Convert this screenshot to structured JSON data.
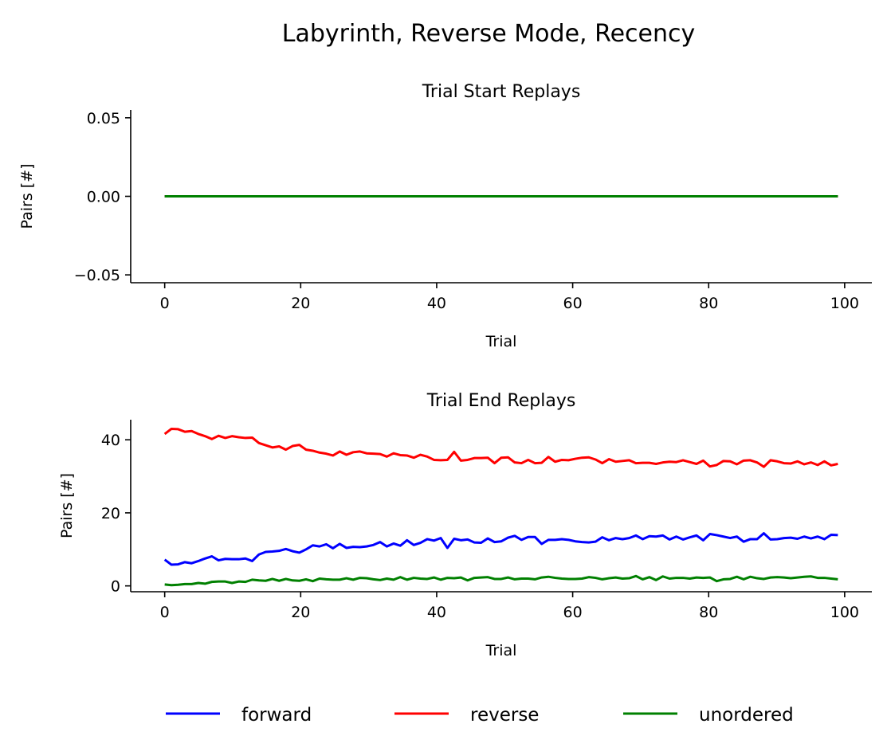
{
  "figure": {
    "title": "Labyrinth, Reverse Mode, Recency"
  },
  "legend": {
    "placement": "bottom-center",
    "entries": [
      {
        "name": "forward",
        "color": "#0000ff"
      },
      {
        "name": "reverse",
        "color": "#ff0000"
      },
      {
        "name": "unordered",
        "color": "#008000"
      }
    ]
  },
  "chart_data": [
    {
      "type": "line",
      "title": "Trial Start Replays",
      "xlabel": "Trial",
      "ylabel": "Pairs [#]",
      "xlim": [
        -5,
        104
      ],
      "ylim": [
        -0.055,
        0.055
      ],
      "xticks": [
        0,
        20,
        40,
        60,
        80,
        100
      ],
      "xtick_labels": [
        "0",
        "20",
        "40",
        "60",
        "80",
        "100"
      ],
      "yticks": [
        0.05,
        0.0,
        -0.05
      ],
      "ytick_labels": [
        "0.05",
        "0.00",
        "−0.05"
      ],
      "grid": false,
      "x": {
        "start": 0,
        "end": 99
      },
      "series": [
        {
          "name": "forward",
          "color": "#0000ff",
          "values": [
            0,
            0
          ]
        },
        {
          "name": "reverse",
          "color": "#ff0000",
          "values": [
            0,
            0
          ]
        },
        {
          "name": "unordered",
          "color": "#008000",
          "values": [
            0,
            0
          ]
        }
      ]
    },
    {
      "type": "line",
      "title": "Trial End Replays",
      "xlabel": "Trial",
      "ylabel": "Pairs [#]",
      "xlim": [
        -5,
        104
      ],
      "ylim": [
        -1.6,
        45.5
      ],
      "xticks": [
        0,
        20,
        40,
        60,
        80,
        100
      ],
      "xtick_labels": [
        "0",
        "20",
        "40",
        "60",
        "80",
        "100"
      ],
      "yticks": [
        40,
        20,
        0
      ],
      "ytick_labels": [
        "40",
        "20",
        "0"
      ],
      "grid": false,
      "x": {
        "start": 0,
        "end": 99
      },
      "series": [
        {
          "name": "forward",
          "color": "#0000ff",
          "values": [
            7.2,
            5.8,
            5.9,
            6.5,
            6.2,
            6.8,
            7.5,
            8.1,
            7.0,
            7.4,
            7.3,
            7.3,
            7.5,
            6.8,
            8.6,
            9.3,
            9.4,
            9.6,
            10.1,
            9.5,
            9.1,
            10.0,
            11.1,
            10.8,
            11.4,
            10.3,
            11.5,
            10.4,
            10.7,
            10.6,
            10.8,
            11.2,
            12.0,
            10.8,
            11.6,
            11.0,
            12.5,
            11.2,
            11.8,
            12.8,
            12.4,
            13.1,
            10.4,
            12.9,
            12.5,
            12.7,
            11.9,
            11.8,
            13.0,
            12.0,
            12.2,
            13.2,
            13.7,
            12.6,
            13.4,
            13.4,
            11.5,
            12.6,
            12.6,
            12.8,
            12.6,
            12.2,
            12.0,
            11.9,
            12.1,
            13.3,
            12.5,
            13.1,
            12.8,
            13.1,
            13.8,
            12.8,
            13.6,
            13.5,
            13.8,
            12.7,
            13.5,
            12.7,
            13.3,
            13.8,
            12.5,
            14.2,
            13.9,
            13.5,
            13.1,
            13.5,
            12.1,
            12.8,
            12.8,
            14.4,
            12.7,
            12.8,
            13.1,
            13.2,
            12.9,
            13.5,
            13.0,
            13.5,
            12.8,
            14.0,
            13.9
          ]
        },
        {
          "name": "reverse",
          "color": "#ff0000",
          "values": [
            41.6,
            43.0,
            42.9,
            42.2,
            42.4,
            41.6,
            41.0,
            40.2,
            41.1,
            40.5,
            41.0,
            40.7,
            40.5,
            40.6,
            39.1,
            38.5,
            37.9,
            38.2,
            37.3,
            38.3,
            38.6,
            37.3,
            37.0,
            36.5,
            36.2,
            35.7,
            36.8,
            35.9,
            36.6,
            36.8,
            36.3,
            36.2,
            36.1,
            35.4,
            36.3,
            35.8,
            35.7,
            35.1,
            35.9,
            35.4,
            34.5,
            34.4,
            34.5,
            36.7,
            34.3,
            34.5,
            35.0,
            35.0,
            35.1,
            33.6,
            35.1,
            35.2,
            33.8,
            33.6,
            34.5,
            33.6,
            33.7,
            35.3,
            34.0,
            34.5,
            34.4,
            34.8,
            35.1,
            35.2,
            34.6,
            33.6,
            34.7,
            34.0,
            34.2,
            34.4,
            33.6,
            33.7,
            33.7,
            33.4,
            33.8,
            34.0,
            33.9,
            34.4,
            33.9,
            33.4,
            34.3,
            32.7,
            33.1,
            34.2,
            34.1,
            33.3,
            34.3,
            34.4,
            33.8,
            32.6,
            34.4,
            34.1,
            33.6,
            33.5,
            34.1,
            33.3,
            33.8,
            33.1,
            34.1,
            33.0,
            33.4
          ]
        },
        {
          "name": "unordered",
          "color": "#008000",
          "values": [
            0.4,
            0.2,
            0.3,
            0.5,
            0.5,
            0.8,
            0.6,
            1.1,
            1.2,
            1.2,
            0.8,
            1.2,
            1.1,
            1.7,
            1.5,
            1.4,
            1.9,
            1.4,
            1.9,
            1.5,
            1.4,
            1.8,
            1.3,
            2.0,
            1.8,
            1.7,
            1.7,
            2.1,
            1.7,
            2.2,
            2.1,
            1.8,
            1.6,
            2.0,
            1.7,
            2.4,
            1.7,
            2.2,
            2.0,
            1.9,
            2.3,
            1.7,
            2.2,
            2.1,
            2.3,
            1.5,
            2.2,
            2.3,
            2.4,
            1.9,
            1.9,
            2.3,
            1.8,
            2.0,
            2.0,
            1.8,
            2.3,
            2.5,
            2.2,
            2.0,
            1.9,
            1.9,
            2.0,
            2.4,
            2.2,
            1.8,
            2.1,
            2.3,
            2.0,
            2.1,
            2.7,
            1.8,
            2.4,
            1.6,
            2.6,
            2.0,
            2.2,
            2.2,
            2.0,
            2.3,
            2.2,
            2.3,
            1.3,
            1.8,
            1.9,
            2.5,
            1.8,
            2.5,
            2.1,
            1.9,
            2.3,
            2.4,
            2.3,
            2.1,
            2.3,
            2.5,
            2.6,
            2.2,
            2.2,
            2.0,
            1.8
          ]
        }
      ]
    }
  ]
}
